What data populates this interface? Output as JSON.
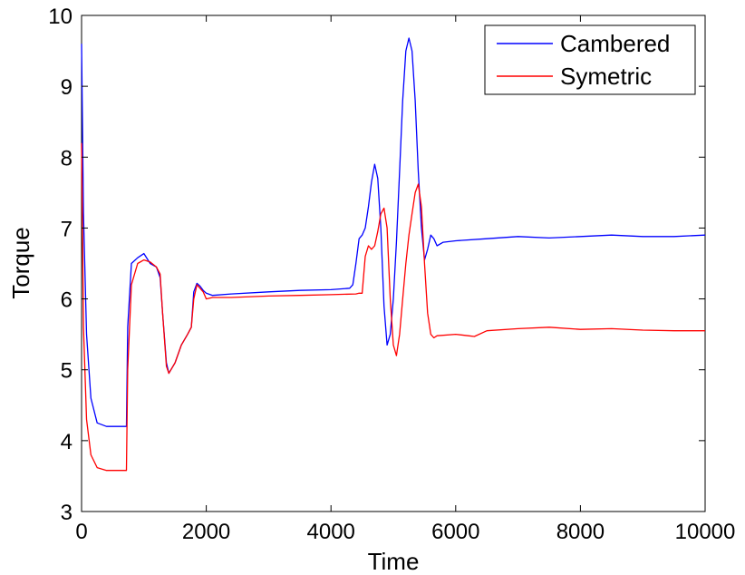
{
  "chart_data": {
    "type": "line",
    "title": "",
    "xlabel": "Time",
    "ylabel": "Torque",
    "xlim": [
      0,
      10000
    ],
    "ylim": [
      3,
      10
    ],
    "x_ticks": [
      0,
      2000,
      4000,
      6000,
      8000,
      10000
    ],
    "y_ticks": [
      3,
      4,
      5,
      6,
      7,
      8,
      9,
      10
    ],
    "grid": false,
    "legend_position": "top-right",
    "series": [
      {
        "name": "Cambered",
        "color": "#0000ff",
        "x": [
          0,
          30,
          80,
          150,
          250,
          400,
          720,
          740,
          800,
          900,
          1000,
          1100,
          1200,
          1260,
          1300,
          1360,
          1400,
          1500,
          1600,
          1700,
          1760,
          1800,
          1850,
          1900,
          1950,
          2000,
          2100,
          2400,
          3000,
          3500,
          4000,
          4300,
          4350,
          4400,
          4450,
          4500,
          4550,
          4600,
          4650,
          4700,
          4750,
          4800,
          4850,
          4900,
          4950,
          5000,
          5050,
          5100,
          5150,
          5200,
          5250,
          5300,
          5350,
          5400,
          5450,
          5500,
          5550,
          5600,
          5650,
          5700,
          5800,
          6000,
          6500,
          7000,
          7500,
          8000,
          8500,
          9000,
          9500,
          10000
        ],
        "y": [
          9.6,
          7.2,
          5.5,
          4.6,
          4.25,
          4.2,
          4.2,
          5.6,
          6.5,
          6.58,
          6.64,
          6.5,
          6.45,
          6.3,
          5.8,
          5.1,
          4.95,
          5.1,
          5.35,
          5.5,
          5.6,
          6.1,
          6.22,
          6.18,
          6.12,
          6.08,
          6.05,
          6.07,
          6.1,
          6.12,
          6.13,
          6.15,
          6.2,
          6.5,
          6.85,
          6.9,
          7.0,
          7.3,
          7.65,
          7.9,
          7.7,
          7.0,
          5.9,
          5.35,
          5.5,
          6.0,
          6.8,
          7.8,
          8.8,
          9.5,
          9.68,
          9.5,
          8.8,
          7.8,
          7.0,
          6.55,
          6.7,
          6.9,
          6.85,
          6.75,
          6.8,
          6.82,
          6.85,
          6.88,
          6.86,
          6.88,
          6.9,
          6.88,
          6.88,
          6.9
        ]
      },
      {
        "name": "Symetric",
        "color": "#ff0000",
        "x": [
          0,
          30,
          80,
          150,
          250,
          400,
          720,
          740,
          800,
          900,
          1000,
          1100,
          1200,
          1260,
          1300,
          1360,
          1400,
          1500,
          1600,
          1700,
          1760,
          1800,
          1850,
          1900,
          1950,
          2000,
          2100,
          2400,
          3000,
          3500,
          4000,
          4400,
          4450,
          4500,
          4550,
          4600,
          4650,
          4700,
          4750,
          4800,
          4850,
          4900,
          4950,
          5000,
          5050,
          5100,
          5150,
          5200,
          5250,
          5300,
          5350,
          5400,
          5450,
          5500,
          5550,
          5600,
          5650,
          5700,
          6000,
          6200,
          6300,
          6500,
          7000,
          7500,
          8000,
          8500,
          9000,
          9500,
          10000
        ],
        "y": [
          8.2,
          5.6,
          4.3,
          3.8,
          3.62,
          3.58,
          3.58,
          5.0,
          6.2,
          6.5,
          6.55,
          6.52,
          6.45,
          6.35,
          5.8,
          5.05,
          4.95,
          5.1,
          5.35,
          5.5,
          5.6,
          6.0,
          6.2,
          6.15,
          6.1,
          6.0,
          6.02,
          6.02,
          6.04,
          6.05,
          6.06,
          6.07,
          6.08,
          6.08,
          6.6,
          6.75,
          6.7,
          6.75,
          6.95,
          7.2,
          7.28,
          7.0,
          6.0,
          5.35,
          5.2,
          5.5,
          6.0,
          6.5,
          6.9,
          7.2,
          7.5,
          7.62,
          7.3,
          6.5,
          5.8,
          5.5,
          5.45,
          5.48,
          5.5,
          5.48,
          5.47,
          5.55,
          5.58,
          5.6,
          5.57,
          5.58,
          5.56,
          5.55,
          5.55
        ]
      }
    ]
  }
}
